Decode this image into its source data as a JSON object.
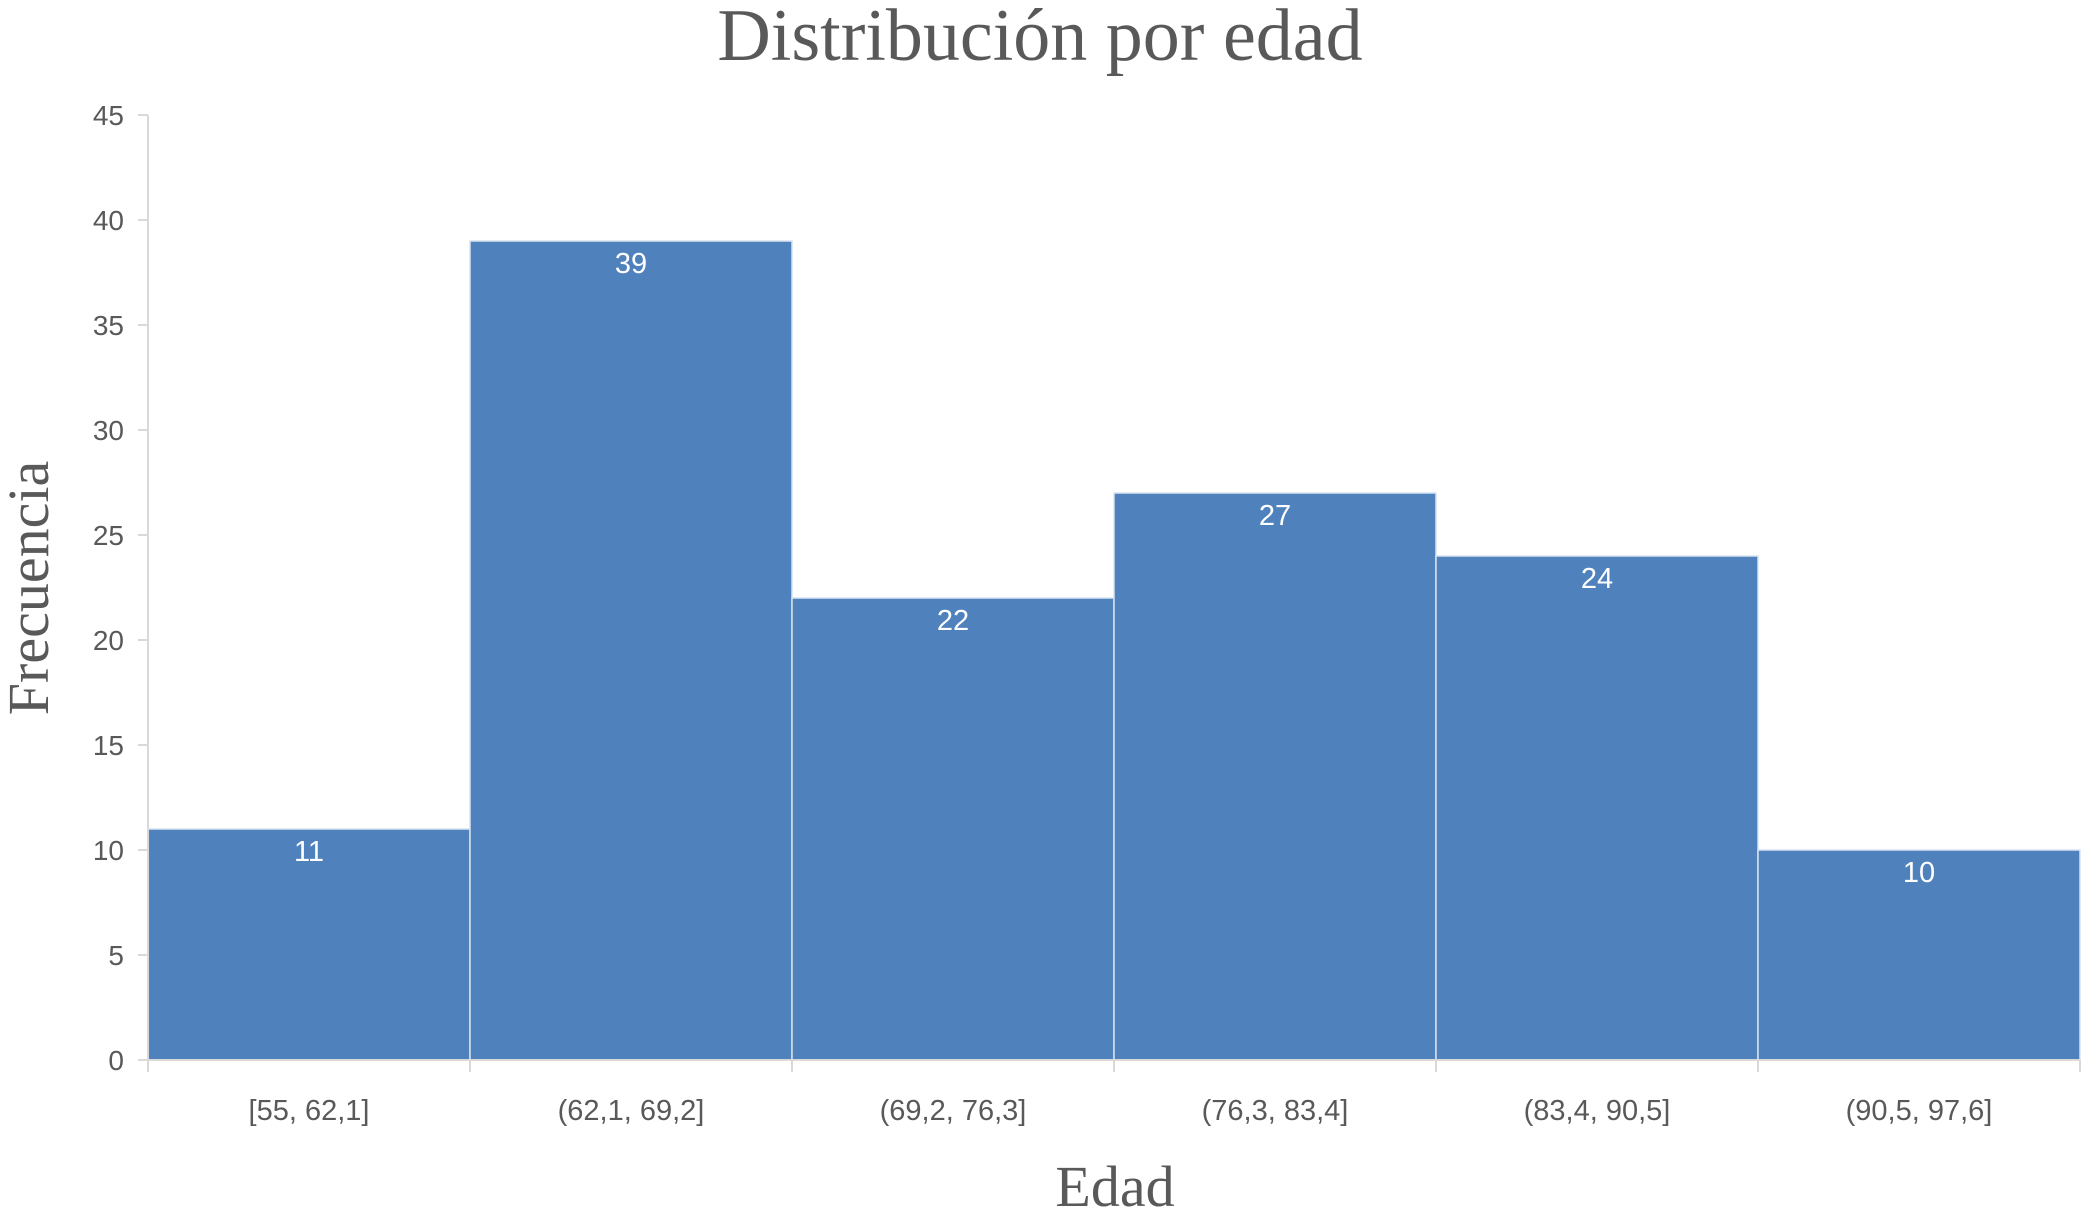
{
  "chart_data": {
    "type": "bar",
    "title": "Distribución por edad",
    "xlabel": "Edad",
    "ylabel": "Frecuencia",
    "categories": [
      "[55, 62,1]",
      "(62,1, 69,2]",
      "(69,2, 76,3]",
      "(76,3, 83,4]",
      "(83,4, 90,5]",
      "(90,5, 97,6]"
    ],
    "values": [
      11,
      39,
      22,
      27,
      24,
      10
    ],
    "ylim": [
      0,
      45
    ],
    "yticks": [
      "0",
      "5",
      "10",
      "15",
      "20",
      "25",
      "30",
      "35",
      "40",
      "45"
    ],
    "data_labels": [
      "11",
      "39",
      "22",
      "27",
      "24",
      "10"
    ],
    "grid": false,
    "legend": "none",
    "bar_color": "#4F81BD",
    "bar_edge_color": "#D9E3F0",
    "axis_color": "#D9D9D9",
    "text_color": "#595959"
  }
}
